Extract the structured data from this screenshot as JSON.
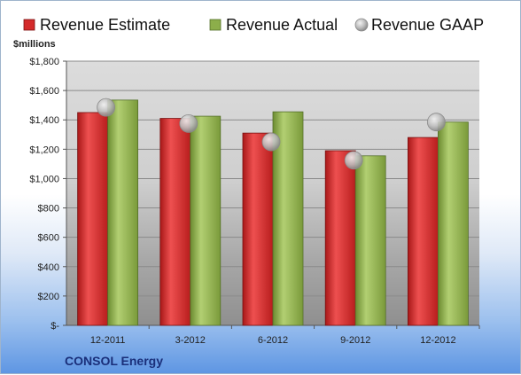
{
  "chart_data": {
    "type": "bar",
    "ylabel": "$millions",
    "ylim": [
      0,
      1800
    ],
    "yticks": [
      "$-",
      "$200",
      "$400",
      "$600",
      "$800",
      "$1,000",
      "$1,200",
      "$1,400",
      "$1,600",
      "$1,800"
    ],
    "categories": [
      "12-2011",
      "3-2012",
      "6-2012",
      "9-2012",
      "12-2012"
    ],
    "series": [
      {
        "name": "Revenue Estimate",
        "kind": "bar",
        "color": "#d42a2a",
        "values": [
          1450,
          1410,
          1310,
          1190,
          1280
        ]
      },
      {
        "name": "Revenue Actual",
        "kind": "bar",
        "color": "#8cae4a",
        "values": [
          1535,
          1425,
          1455,
          1155,
          1385
        ]
      },
      {
        "name": "Revenue GAAP",
        "kind": "marker",
        "color": "#b8b8b8",
        "values": [
          1485,
          1375,
          1250,
          1125,
          1385
        ]
      }
    ],
    "legend": "top",
    "grid": true
  },
  "footer": {
    "company": "CONSOL Energy"
  }
}
